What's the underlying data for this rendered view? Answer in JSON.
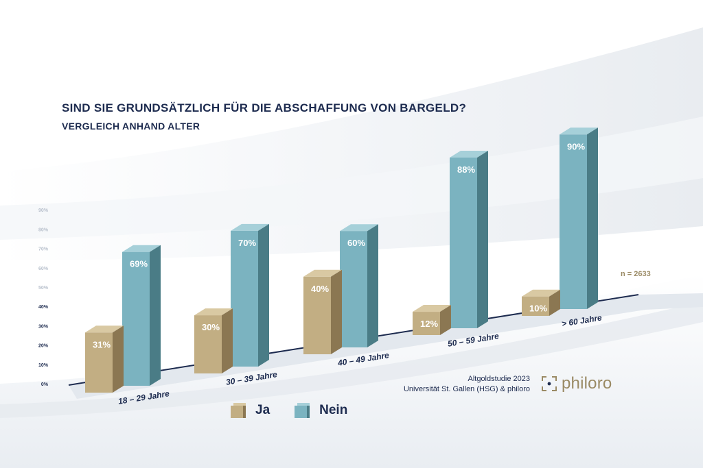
{
  "title": "SIND SIE GRUNDSÄTZLICH FÜR DIE ABSCHAFFUNG VON BARGELD?",
  "subtitle": "VERGLEICH ANHAND ALTER",
  "sample_size": "n = 2633",
  "source_lines": [
    "Altgoldstudie 2023",
    "Universität St. Gallen (HSG) & philoro"
  ],
  "logo_text": "philoro",
  "colors": {
    "ja_face": "#c2ae83",
    "ja_top": "#d9c9a3",
    "ja_side": "#8b7752",
    "nein_face": "#7bb3c0",
    "nein_top": "#a6d0d9",
    "nein_side": "#4a7c86",
    "text": "#1d2b4f",
    "gold": "#9a8a64"
  },
  "chart_data": {
    "type": "bar",
    "categories": [
      "18 – 29 Jahre",
      "30 – 39 Jahre",
      "40 – 49 Jahre",
      "50 – 59 Jahre",
      "> 60 Jahre"
    ],
    "series": [
      {
        "name": "Ja",
        "values": [
          31,
          30,
          40,
          12,
          10
        ],
        "labels": [
          "31%",
          "30%",
          "40%",
          "12%",
          "10%"
        ]
      },
      {
        "name": "Nein",
        "values": [
          69,
          70,
          60,
          88,
          90
        ],
        "labels": [
          "69%",
          "70%",
          "60%",
          "88%",
          "90%"
        ]
      }
    ],
    "yticks": [
      "0%",
      "10%",
      "20%",
      "30%",
      "40%",
      "50%",
      "60%",
      "70%",
      "80%",
      "90%"
    ],
    "ylim": [
      0,
      90
    ],
    "legend": "bottom"
  }
}
